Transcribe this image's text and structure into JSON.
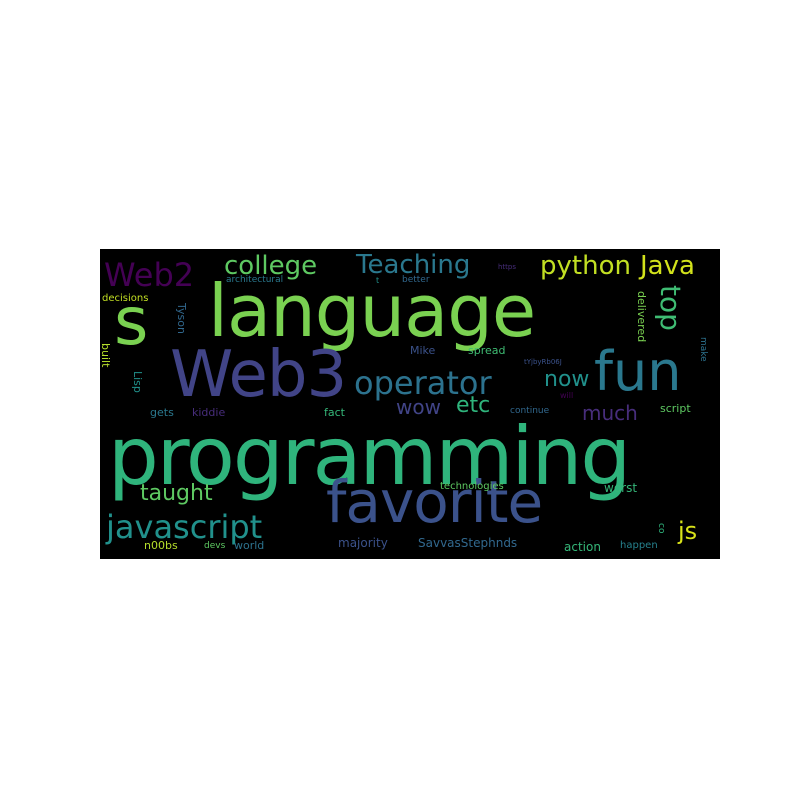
{
  "words": [
    {
      "text": "programming",
      "color": "#2fb47c"
    },
    {
      "text": "language",
      "color": "#7ad151"
    },
    {
      "text": "Web3",
      "color": "#414487"
    },
    {
      "text": "favorite",
      "color": "#3b528b"
    },
    {
      "text": "fun",
      "color": "#2a788e"
    },
    {
      "text": "s",
      "color": "#7ad151"
    },
    {
      "text": "javascript",
      "color": "#21918c"
    },
    {
      "text": "operator",
      "color": "#2c728e"
    },
    {
      "text": "Web2",
      "color": "#440154"
    },
    {
      "text": "college",
      "color": "#5ec962"
    },
    {
      "text": "Teaching",
      "color": "#2a788e"
    },
    {
      "text": "python",
      "color": "#c2df23"
    },
    {
      "text": "Java",
      "color": "#d2e21b"
    },
    {
      "text": "top",
      "color": "#3fbc73"
    },
    {
      "text": "now",
      "color": "#21918c"
    },
    {
      "text": "wow",
      "color": "#414487"
    },
    {
      "text": "etc",
      "color": "#2fb47c"
    },
    {
      "text": "much",
      "color": "#472d7b"
    },
    {
      "text": "taught",
      "color": "#5ec962"
    },
    {
      "text": "js",
      "color": "#d8e219"
    },
    {
      "text": "worst",
      "color": "#35b779"
    },
    {
      "text": "technologies",
      "color": "#5ec962"
    },
    {
      "text": "majority",
      "color": "#3b528b"
    },
    {
      "text": "SavvasStephnds",
      "color": "#31688e"
    },
    {
      "text": "action",
      "color": "#35b779"
    },
    {
      "text": "happen",
      "color": "#26828e"
    },
    {
      "text": "n00bs",
      "color": "#b5de2b"
    },
    {
      "text": "devs",
      "color": "#5ec962"
    },
    {
      "text": "world",
      "color": "#2c728e"
    },
    {
      "text": "gets",
      "color": "#2a788e"
    },
    {
      "text": "kiddie",
      "color": "#472d7b"
    },
    {
      "text": "fact",
      "color": "#35b779"
    },
    {
      "text": "continue",
      "color": "#31688e"
    },
    {
      "text": "script",
      "color": "#5ec962"
    },
    {
      "text": "Mike",
      "color": "#3b528b"
    },
    {
      "text": "spread",
      "color": "#3fbc73"
    },
    {
      "text": "tYjbyRb06J",
      "color": "#3b528b"
    },
    {
      "text": "will",
      "color": "#440154"
    },
    {
      "text": "architectural",
      "color": "#2a788e"
    },
    {
      "text": "t",
      "color": "#21918c"
    },
    {
      "text": "better",
      "color": "#31688e"
    },
    {
      "text": "https",
      "color": "#472d7b"
    },
    {
      "text": "decisions",
      "color": "#c2df23"
    },
    {
      "text": "built",
      "color": "#b5de2b"
    },
    {
      "text": "Lisp",
      "color": "#21918c"
    },
    {
      "text": "Tyson",
      "color": "#31688e"
    },
    {
      "text": "delivered",
      "color": "#7ad151"
    },
    {
      "text": "make",
      "color": "#2c728e"
    },
    {
      "text": "co",
      "color": "#2fb47c"
    }
  ]
}
